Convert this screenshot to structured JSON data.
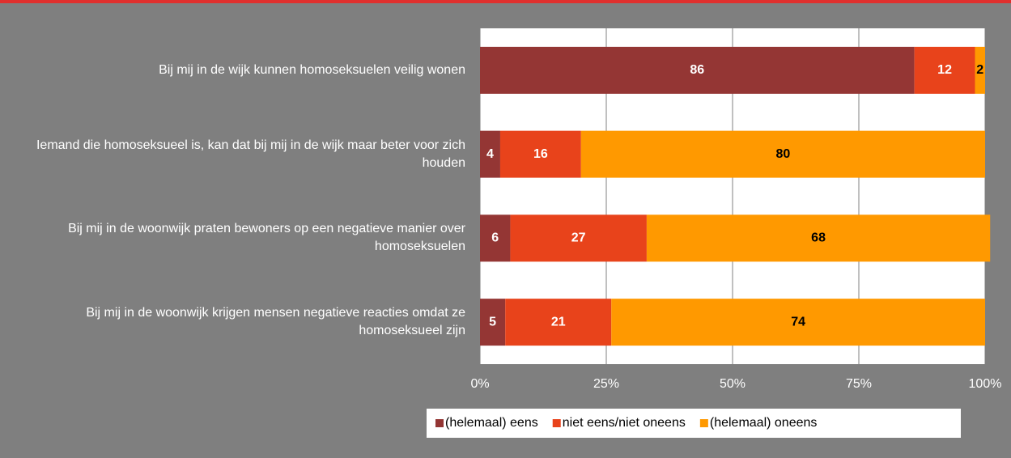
{
  "chart_data": {
    "type": "stacked-bar",
    "orientation": "horizontal",
    "categories": [
      "Bij mij in de wijk kunnen homoseksuelen veilig wonen",
      "Iemand die homoseksueel is, kan dat bij mij in de wijk maar beter voor zich houden",
      "Bij mij in de woonwijk praten bewoners op een negatieve manier over homoseksuelen",
      "Bij mij in de woonwijk krijgen mensen negatieve reacties omdat ze homoseksueel zijn"
    ],
    "series": [
      {
        "name": "(helemaal) eens",
        "color": "#943634",
        "values": [
          86,
          4,
          6,
          5
        ]
      },
      {
        "name": "niet eens/niet oneens",
        "color": "#e8431b",
        "values": [
          12,
          16,
          27,
          21
        ]
      },
      {
        "name": "(helemaal) oneens",
        "color": "#ff9900",
        "values": [
          2,
          80,
          68,
          74
        ]
      }
    ],
    "xlim": [
      0,
      100
    ],
    "xticks": [
      {
        "value": 0,
        "label": "0%"
      },
      {
        "value": 25,
        "label": "25%"
      },
      {
        "value": 50,
        "label": "50%"
      },
      {
        "value": 75,
        "label": "75%"
      },
      {
        "value": 100,
        "label": "100%"
      }
    ],
    "grid": true,
    "legend": "bottom"
  }
}
